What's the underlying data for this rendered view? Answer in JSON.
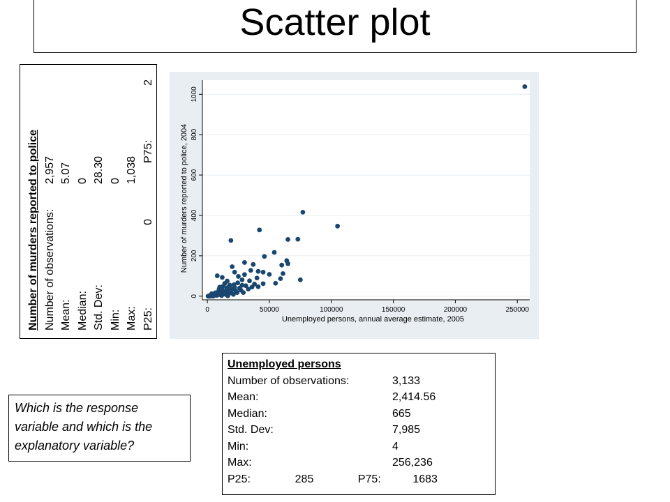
{
  "slide": {
    "title": "Scatter plot",
    "question": "Which is the response variable and which is the explanatory variable?"
  },
  "murder_stats": {
    "heading": "Number of murders reported to police",
    "rows": [
      {
        "label": "Number of observations:",
        "value": "2,957"
      },
      {
        "label": "Mean:",
        "value": "5.07"
      },
      {
        "label": "Median:",
        "value": "0"
      },
      {
        "label": "Std. Dev:",
        "value": "28.30"
      },
      {
        "label": "Min:",
        "value": "0"
      },
      {
        "label": "Max:",
        "value": "1,038"
      }
    ],
    "p25_label": "P25:",
    "p25": "0",
    "p75_label": "P75:",
    "p75": "2"
  },
  "unemployed_stats": {
    "heading": "Unemployed persons",
    "rows": [
      {
        "label": "Number of observations:",
        "value": "3,133"
      },
      {
        "label": "Mean:",
        "value": "2,414.56"
      },
      {
        "label": "Median:",
        "value": "665"
      },
      {
        "label": "Std. Dev:",
        "value": "7,985"
      },
      {
        "label": "Min:",
        "value": "4"
      },
      {
        "label": "Max:",
        "value": "256,236"
      }
    ],
    "p25_label": "P25:",
    "p25": "285",
    "p75_label": "P75:",
    "p75": "1683"
  },
  "colors": {
    "marker": "#1a476f",
    "plot_background": "#ffffff",
    "outer_background": "#e8eef2",
    "grid": "#e8eef2"
  },
  "chart_data": {
    "type": "scatter",
    "title": "",
    "xlabel": "Unemployed persons, annual average estimate, 2005",
    "ylabel": "Number of murders reported to police, 2004",
    "xlim": [
      0,
      256236
    ],
    "ylim": [
      0,
      1038
    ],
    "xticks": [
      0,
      50000,
      100000,
      150000,
      200000,
      250000
    ],
    "yticks": [
      0,
      200,
      400,
      600,
      800,
      1000
    ],
    "grid": true,
    "series": [
      {
        "values": [
          {
            "x": 256000,
            "y": 1038
          },
          {
            "x": 105000,
            "y": 347
          },
          {
            "x": 77000,
            "y": 416
          },
          {
            "x": 42000,
            "y": 328
          },
          {
            "x": 19000,
            "y": 276
          },
          {
            "x": 73000,
            "y": 282
          },
          {
            "x": 65000,
            "y": 281
          },
          {
            "x": 54000,
            "y": 217
          },
          {
            "x": 64000,
            "y": 176
          },
          {
            "x": 65000,
            "y": 161
          },
          {
            "x": 46000,
            "y": 197
          },
          {
            "x": 60000,
            "y": 154
          },
          {
            "x": 37000,
            "y": 157
          },
          {
            "x": 30000,
            "y": 167
          },
          {
            "x": 20000,
            "y": 146
          },
          {
            "x": 35000,
            "y": 128
          },
          {
            "x": 41000,
            "y": 123
          },
          {
            "x": 45000,
            "y": 119
          },
          {
            "x": 50000,
            "y": 108
          },
          {
            "x": 61000,
            "y": 112
          },
          {
            "x": 59000,
            "y": 87
          },
          {
            "x": 40000,
            "y": 90
          },
          {
            "x": 30000,
            "y": 107
          },
          {
            "x": 25000,
            "y": 98
          },
          {
            "x": 22000,
            "y": 119
          },
          {
            "x": 12000,
            "y": 93
          },
          {
            "x": 8000,
            "y": 101
          },
          {
            "x": 34000,
            "y": 76
          },
          {
            "x": 28000,
            "y": 81
          },
          {
            "x": 45000,
            "y": 62
          },
          {
            "x": 16000,
            "y": 75
          },
          {
            "x": 55000,
            "y": 64
          },
          {
            "x": 75000,
            "y": 81
          },
          {
            "x": 41000,
            "y": 47
          },
          {
            "x": 28000,
            "y": 54
          },
          {
            "x": 18000,
            "y": 55
          },
          {
            "x": 14000,
            "y": 63
          },
          {
            "x": 22000,
            "y": 43
          },
          {
            "x": 10000,
            "y": 45
          },
          {
            "x": 33000,
            "y": 35
          },
          {
            "x": 27000,
            "y": 30
          },
          {
            "x": 20000,
            "y": 33
          },
          {
            "x": 16000,
            "y": 42
          },
          {
            "x": 12000,
            "y": 30
          },
          {
            "x": 9000,
            "y": 24
          },
          {
            "x": 14000,
            "y": 20
          },
          {
            "x": 24000,
            "y": 18
          },
          {
            "x": 18000,
            "y": 15
          },
          {
            "x": 7000,
            "y": 13
          },
          {
            "x": 5000,
            "y": 9
          },
          {
            "x": 10000,
            "y": 8
          },
          {
            "x": 13000,
            "y": 10
          },
          {
            "x": 3000,
            "y": 5
          },
          {
            "x": 2000,
            "y": 3
          },
          {
            "x": 1000,
            "y": 1
          },
          {
            "x": 600,
            "y": 0
          },
          {
            "x": 1500,
            "y": 0
          },
          {
            "x": 2500,
            "y": 2
          },
          {
            "x": 4000,
            "y": 3
          },
          {
            "x": 6000,
            "y": 6
          },
          {
            "x": 8000,
            "y": 5
          },
          {
            "x": 11000,
            "y": 14
          },
          {
            "x": 15000,
            "y": 8
          },
          {
            "x": 17000,
            "y": 22
          },
          {
            "x": 19000,
            "y": 28
          },
          {
            "x": 21000,
            "y": 9
          },
          {
            "x": 23000,
            "y": 25
          },
          {
            "x": 26000,
            "y": 40
          },
          {
            "x": 29000,
            "y": 18
          },
          {
            "x": 31000,
            "y": 52
          },
          {
            "x": 36000,
            "y": 45
          },
          {
            "x": 38000,
            "y": 60
          },
          {
            "x": 3500,
            "y": 12
          },
          {
            "x": 4500,
            "y": 0
          },
          {
            "x": 6500,
            "y": 17
          },
          {
            "x": 9500,
            "y": 36
          },
          {
            "x": 12500,
            "y": 48
          },
          {
            "x": 15500,
            "y": 33
          },
          {
            "x": 18500,
            "y": 40
          },
          {
            "x": 21500,
            "y": 57
          },
          {
            "x": 24500,
            "y": 66
          },
          {
            "x": 2000,
            "y": 0
          },
          {
            "x": 3000,
            "y": 1
          },
          {
            "x": 5000,
            "y": 2
          },
          {
            "x": 7500,
            "y": 4
          },
          {
            "x": 11500,
            "y": 3
          },
          {
            "x": 16500,
            "y": 2
          }
        ]
      }
    ]
  }
}
